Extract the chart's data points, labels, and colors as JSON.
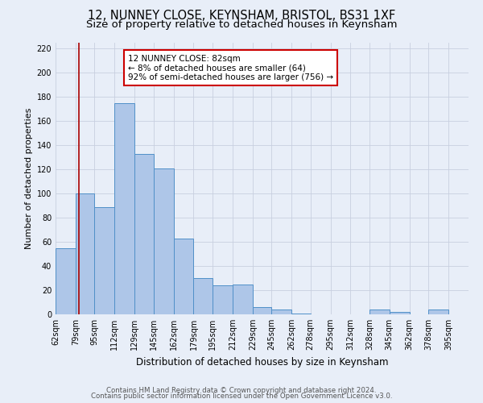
{
  "title": "12, NUNNEY CLOSE, KEYNSHAM, BRISTOL, BS31 1XF",
  "subtitle": "Size of property relative to detached houses in Keynsham",
  "xlabel": "Distribution of detached houses by size in Keynsham",
  "ylabel": "Number of detached properties",
  "bin_labels": [
    "62sqm",
    "79sqm",
    "95sqm",
    "112sqm",
    "129sqm",
    "145sqm",
    "162sqm",
    "179sqm",
    "195sqm",
    "212sqm",
    "229sqm",
    "245sqm",
    "262sqm",
    "278sqm",
    "295sqm",
    "312sqm",
    "328sqm",
    "345sqm",
    "362sqm",
    "378sqm",
    "395sqm"
  ],
  "bin_edges": [
    62,
    79,
    95,
    112,
    129,
    145,
    162,
    179,
    195,
    212,
    229,
    245,
    262,
    278,
    295,
    312,
    328,
    345,
    362,
    378,
    395
  ],
  "bar_heights": [
    55,
    100,
    89,
    175,
    133,
    121,
    63,
    30,
    24,
    25,
    6,
    4,
    1,
    0,
    0,
    0,
    4,
    2,
    0,
    4
  ],
  "bar_color": "#aec6e8",
  "bar_edge_color": "#5090c8",
  "vline_x": 82,
  "vline_color": "#aa0000",
  "annotation_text": "12 NUNNEY CLOSE: 82sqm\n← 8% of detached houses are smaller (64)\n92% of semi-detached houses are larger (756) →",
  "annotation_box_color": "#ffffff",
  "annotation_box_edge": "#cc0000",
  "ylim": [
    0,
    225
  ],
  "yticks": [
    0,
    20,
    40,
    60,
    80,
    100,
    120,
    140,
    160,
    180,
    200,
    220
  ],
  "background_color": "#e8eef8",
  "grid_color": "#c8cfe0",
  "footer_line1": "Contains HM Land Registry data © Crown copyright and database right 2024.",
  "footer_line2": "Contains public sector information licensed under the Open Government Licence v3.0.",
  "title_fontsize": 10.5,
  "subtitle_fontsize": 9.5,
  "xlabel_fontsize": 8.5,
  "ylabel_fontsize": 8,
  "tick_fontsize": 7,
  "annot_fontsize": 7.5,
  "footer_fontsize": 6.2
}
